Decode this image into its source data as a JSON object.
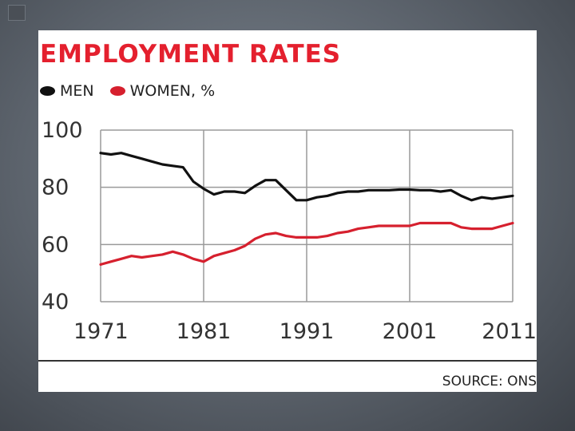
{
  "chart_data": {
    "type": "line",
    "title": "EMPLOYMENT RATES",
    "legend_suffix": ", %",
    "legend_placement": "top-left",
    "grid": true,
    "x_ticks": [
      1971,
      1981,
      1991,
      2001,
      2011
    ],
    "y_ticks": [
      100,
      80,
      60,
      40
    ],
    "xlim": [
      1971,
      2011
    ],
    "ylim": [
      40,
      100
    ],
    "series": [
      {
        "name": "MEN",
        "color": "#111111",
        "x": [
          1971,
          1972,
          1973,
          1974,
          1975,
          1976,
          1977,
          1978,
          1979,
          1980,
          1981,
          1982,
          1983,
          1984,
          1985,
          1986,
          1987,
          1988,
          1989,
          1990,
          1991,
          1992,
          1993,
          1994,
          1995,
          1996,
          1997,
          1998,
          1999,
          2000,
          2001,
          2002,
          2003,
          2004,
          2005,
          2006,
          2007,
          2008,
          2009,
          2010,
          2011
        ],
        "y": [
          92,
          91.5,
          92,
          91,
          90,
          89,
          88,
          87.5,
          87,
          82,
          79.5,
          77.5,
          78.5,
          78.5,
          78,
          80.5,
          82.5,
          82.5,
          79,
          75.5,
          75.5,
          76.5,
          77,
          78,
          78.5,
          78.5,
          79,
          79,
          79,
          79.2,
          79.2,
          79,
          79,
          78.5,
          79,
          77,
          75.5,
          76.5,
          76,
          76.5,
          77
        ]
      },
      {
        "name": "WOMEN",
        "color": "#d6202e",
        "x": [
          1971,
          1972,
          1973,
          1974,
          1975,
          1976,
          1977,
          1978,
          1979,
          1980,
          1981,
          1982,
          1983,
          1984,
          1985,
          1986,
          1987,
          1988,
          1989,
          1990,
          1991,
          1992,
          1993,
          1994,
          1995,
          1996,
          1997,
          1998,
          1999,
          2000,
          2001,
          2002,
          2003,
          2004,
          2005,
          2006,
          2007,
          2008,
          2009,
          2010,
          2011
        ],
        "y": [
          53,
          54,
          55,
          56,
          55.5,
          56,
          56.5,
          57.5,
          56.5,
          55,
          54,
          56,
          57,
          58,
          59.5,
          62,
          63.5,
          64,
          63,
          62.5,
          62.5,
          62.5,
          63,
          64,
          64.5,
          65.5,
          66,
          66.5,
          66.5,
          66.5,
          66.5,
          67.5,
          67.5,
          67.5,
          67.5,
          66,
          65.5,
          65.5,
          65.5,
          66.5,
          67.5
        ]
      }
    ]
  },
  "source": "SOURCE: ONS"
}
